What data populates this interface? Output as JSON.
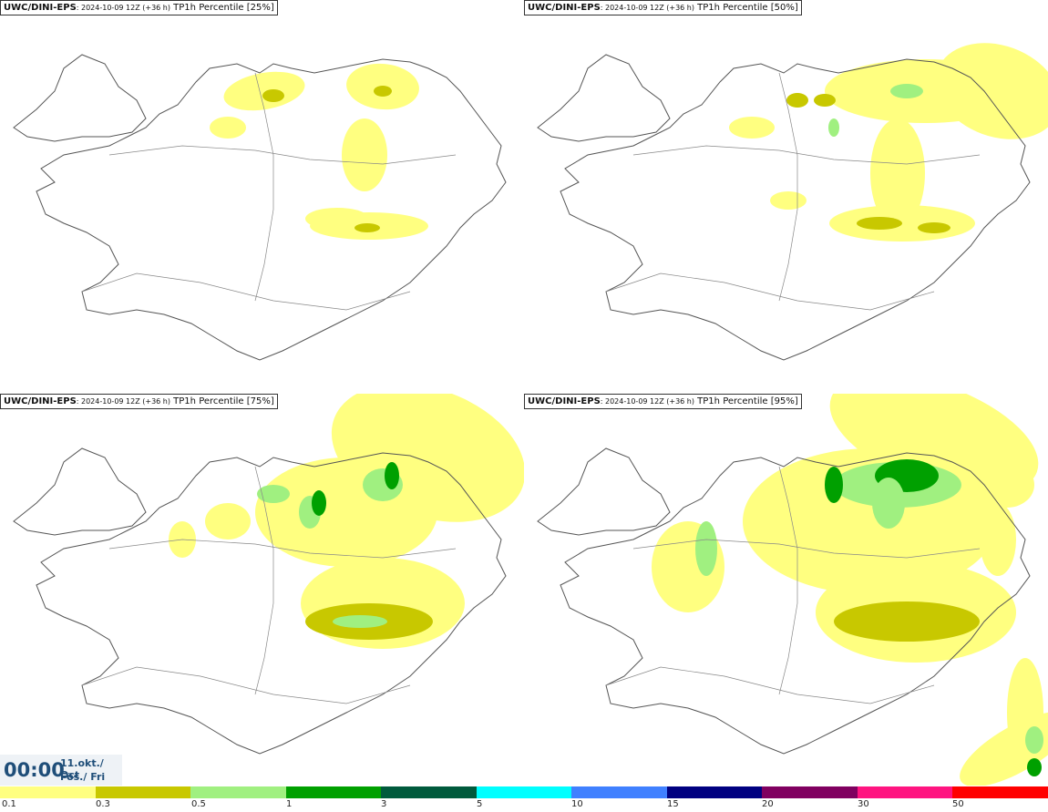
{
  "panels": [
    {
      "model": "UWC/DINI-EPS",
      "run": ": 2024-10-09 12Z (+36 h)",
      "label": "TP1h Percentile [25%]"
    },
    {
      "model": "UWC/DINI-EPS",
      "run": ": 2024-10-09 12Z (+36 h)",
      "label": "TP1h Percentile [50%]"
    },
    {
      "model": "UWC/DINI-EPS",
      "run": ": 2024-10-09 12Z (+36 h)",
      "label": "TP1h Percentile [75%]"
    },
    {
      "model": "UWC/DINI-EPS",
      "run": ": 2024-10-09 12Z (+36 h)",
      "label": "TP1h Percentile [95%]"
    }
  ],
  "time": {
    "hhmm": "00:00",
    "date": "11.okt./ Oct",
    "weekday": "Fös./ Fri"
  },
  "legend": {
    "labels": [
      "0.1",
      "0.3",
      "0.5",
      "1",
      "3",
      "5",
      "10",
      "15",
      "20",
      "30",
      "50"
    ],
    "colors": [
      "#ffff80",
      "#c8c800",
      "#a0f080",
      "#00a000",
      "#005a3c",
      "#00ffff",
      "#4080ff",
      "#000080",
      "#800060",
      "#ff1480",
      "#ff0000"
    ]
  }
}
